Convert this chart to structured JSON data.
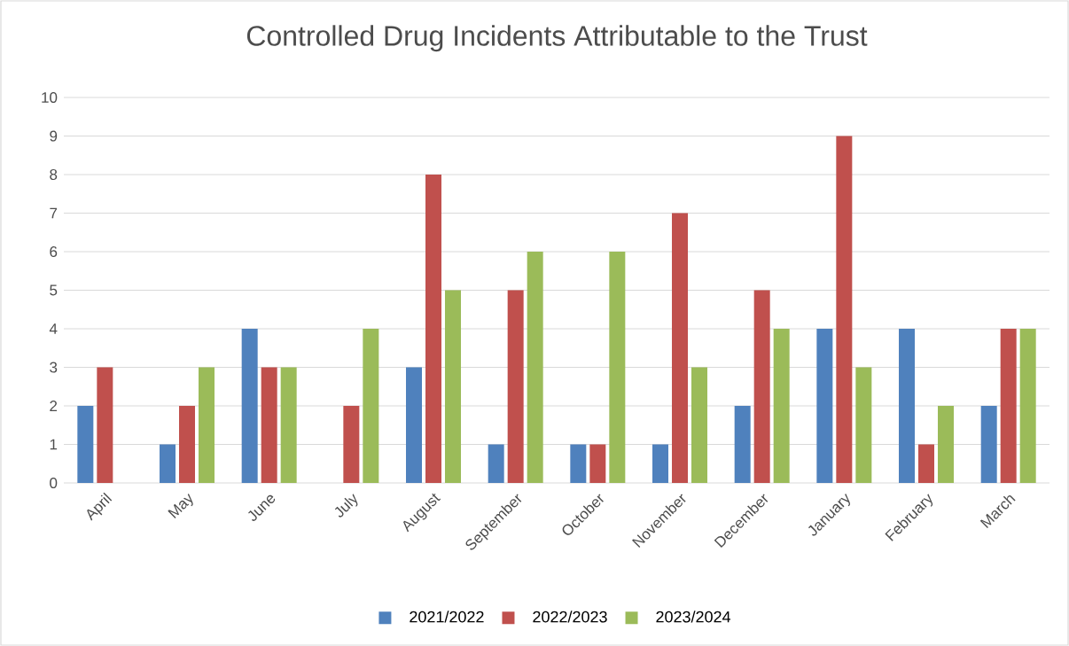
{
  "chart_data": {
    "type": "bar",
    "title": "Controlled Drug Incidents Attributable to the Trust",
    "categories": [
      "April",
      "May",
      "June",
      "July",
      "August",
      "September",
      "October",
      "November",
      "December",
      "January",
      "February",
      "March"
    ],
    "series": [
      {
        "name": "2021/2022",
        "color": "#4f81bd",
        "values": [
          2,
          1,
          4,
          0,
          3,
          1,
          1,
          1,
          2,
          4,
          4,
          2
        ]
      },
      {
        "name": "2022/2023",
        "color": "#c0504d",
        "values": [
          3,
          2,
          3,
          2,
          8,
          5,
          1,
          7,
          5,
          9,
          1,
          4
        ]
      },
      {
        "name": "2023/2024",
        "color": "#9bbb59",
        "values": [
          0,
          3,
          3,
          4,
          5,
          6,
          6,
          3,
          4,
          3,
          2,
          4
        ]
      }
    ],
    "ylim": [
      0,
      10
    ],
    "yticks": [
      0,
      1,
      2,
      3,
      4,
      5,
      6,
      7,
      8,
      9,
      10
    ],
    "grid": "y",
    "legend": "bottom"
  }
}
